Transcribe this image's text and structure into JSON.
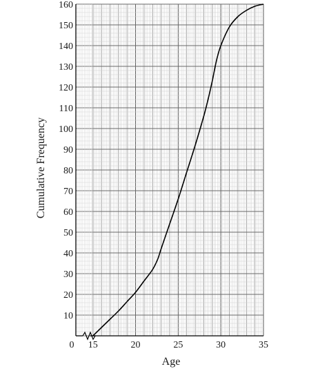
{
  "chart_data": {
    "type": "line",
    "title": "",
    "xlabel": "Age",
    "ylabel": "Cumulative Frequency",
    "xlim": [
      13,
      35
    ],
    "ylim": [
      0,
      160
    ],
    "x_ticks": [
      {
        "value": 15,
        "label": "15"
      },
      {
        "value": 20,
        "label": "20"
      },
      {
        "value": 25,
        "label": "25"
      },
      {
        "value": 30,
        "label": "30"
      },
      {
        "value": 35,
        "label": "35"
      }
    ],
    "origin_label": "0",
    "axis_break": true,
    "y_ticks": [
      10,
      20,
      30,
      40,
      50,
      60,
      70,
      80,
      90,
      100,
      110,
      120,
      130,
      140,
      150,
      160
    ],
    "grid": {
      "major_x": 1,
      "minor_x": 0.2,
      "major_y": 10,
      "minor_y": 2
    },
    "series": [
      {
        "name": "",
        "x": [
          15,
          16,
          17,
          18,
          19,
          20,
          21,
          22,
          22.6,
          23,
          24,
          25,
          26,
          27,
          28,
          28.5,
          29,
          29.5,
          30,
          31,
          32,
          33,
          34,
          35
        ],
        "y": [
          0,
          4,
          8,
          12,
          16.5,
          21,
          26.5,
          32,
          37,
          42,
          54,
          66,
          79,
          92,
          106,
          114,
          123,
          133,
          140,
          149,
          154,
          157,
          159,
          160
        ]
      }
    ]
  }
}
